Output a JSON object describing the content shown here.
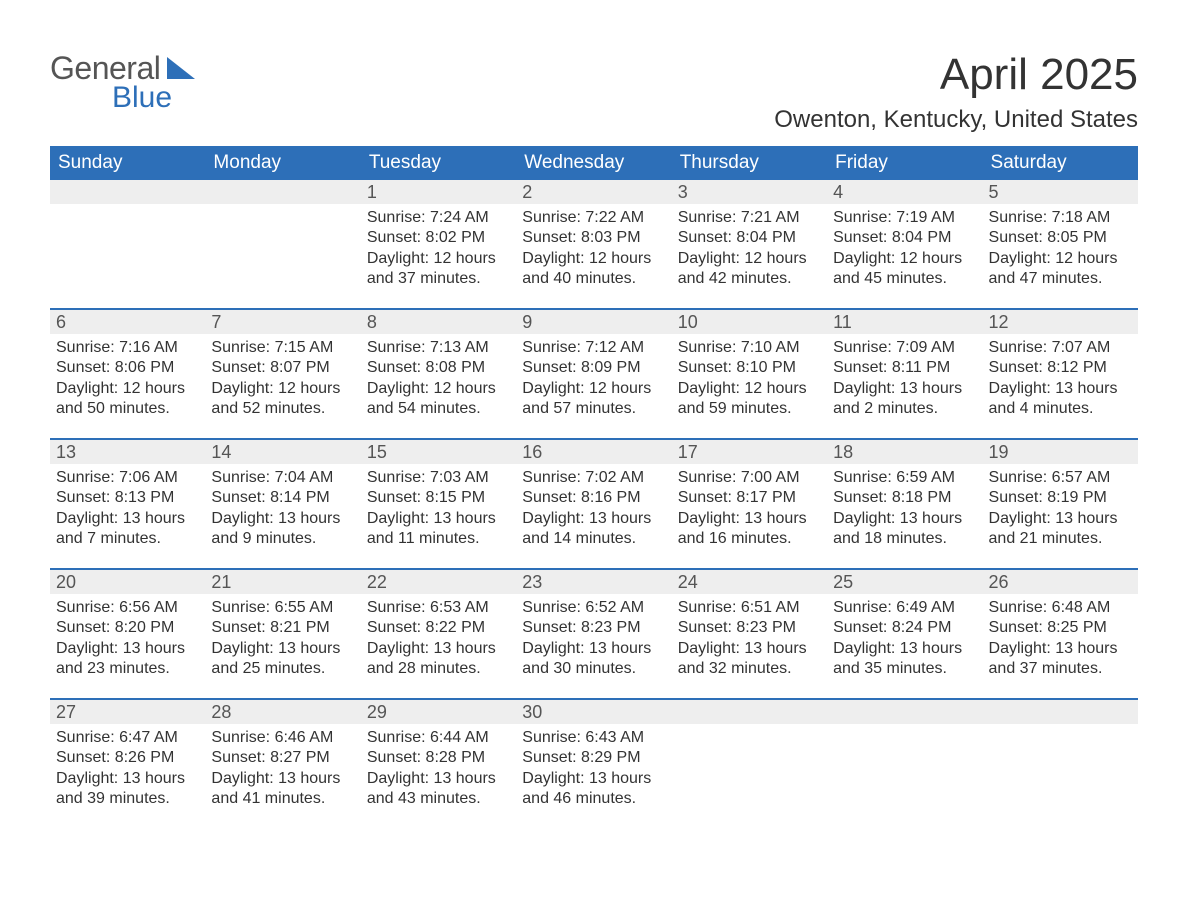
{
  "logo": {
    "textGeneral": "General",
    "textBlue": "Blue",
    "shape_color": "#2d6fb8"
  },
  "title": "April 2025",
  "location": "Owenton, Kentucky, United States",
  "colors": {
    "header_bg": "#2d6fb8",
    "header_text": "#ffffff",
    "daynum_bg": "#eeeeee",
    "daynum_text": "#555555",
    "body_text": "#333333",
    "row_border": "#2d6fb8"
  },
  "weekdays": [
    "Sunday",
    "Monday",
    "Tuesday",
    "Wednesday",
    "Thursday",
    "Friday",
    "Saturday"
  ],
  "weeks": [
    [
      {
        "n": "",
        "sunrise": "",
        "sunset": "",
        "daylight": ""
      },
      {
        "n": "",
        "sunrise": "",
        "sunset": "",
        "daylight": ""
      },
      {
        "n": "1",
        "sunrise": "Sunrise: 7:24 AM",
        "sunset": "Sunset: 8:02 PM",
        "daylight": "Daylight: 12 hours and 37 minutes."
      },
      {
        "n": "2",
        "sunrise": "Sunrise: 7:22 AM",
        "sunset": "Sunset: 8:03 PM",
        "daylight": "Daylight: 12 hours and 40 minutes."
      },
      {
        "n": "3",
        "sunrise": "Sunrise: 7:21 AM",
        "sunset": "Sunset: 8:04 PM",
        "daylight": "Daylight: 12 hours and 42 minutes."
      },
      {
        "n": "4",
        "sunrise": "Sunrise: 7:19 AM",
        "sunset": "Sunset: 8:04 PM",
        "daylight": "Daylight: 12 hours and 45 minutes."
      },
      {
        "n": "5",
        "sunrise": "Sunrise: 7:18 AM",
        "sunset": "Sunset: 8:05 PM",
        "daylight": "Daylight: 12 hours and 47 minutes."
      }
    ],
    [
      {
        "n": "6",
        "sunrise": "Sunrise: 7:16 AM",
        "sunset": "Sunset: 8:06 PM",
        "daylight": "Daylight: 12 hours and 50 minutes."
      },
      {
        "n": "7",
        "sunrise": "Sunrise: 7:15 AM",
        "sunset": "Sunset: 8:07 PM",
        "daylight": "Daylight: 12 hours and 52 minutes."
      },
      {
        "n": "8",
        "sunrise": "Sunrise: 7:13 AM",
        "sunset": "Sunset: 8:08 PM",
        "daylight": "Daylight: 12 hours and 54 minutes."
      },
      {
        "n": "9",
        "sunrise": "Sunrise: 7:12 AM",
        "sunset": "Sunset: 8:09 PM",
        "daylight": "Daylight: 12 hours and 57 minutes."
      },
      {
        "n": "10",
        "sunrise": "Sunrise: 7:10 AM",
        "sunset": "Sunset: 8:10 PM",
        "daylight": "Daylight: 12 hours and 59 minutes."
      },
      {
        "n": "11",
        "sunrise": "Sunrise: 7:09 AM",
        "sunset": "Sunset: 8:11 PM",
        "daylight": "Daylight: 13 hours and 2 minutes."
      },
      {
        "n": "12",
        "sunrise": "Sunrise: 7:07 AM",
        "sunset": "Sunset: 8:12 PM",
        "daylight": "Daylight: 13 hours and 4 minutes."
      }
    ],
    [
      {
        "n": "13",
        "sunrise": "Sunrise: 7:06 AM",
        "sunset": "Sunset: 8:13 PM",
        "daylight": "Daylight: 13 hours and 7 minutes."
      },
      {
        "n": "14",
        "sunrise": "Sunrise: 7:04 AM",
        "sunset": "Sunset: 8:14 PM",
        "daylight": "Daylight: 13 hours and 9 minutes."
      },
      {
        "n": "15",
        "sunrise": "Sunrise: 7:03 AM",
        "sunset": "Sunset: 8:15 PM",
        "daylight": "Daylight: 13 hours and 11 minutes."
      },
      {
        "n": "16",
        "sunrise": "Sunrise: 7:02 AM",
        "sunset": "Sunset: 8:16 PM",
        "daylight": "Daylight: 13 hours and 14 minutes."
      },
      {
        "n": "17",
        "sunrise": "Sunrise: 7:00 AM",
        "sunset": "Sunset: 8:17 PM",
        "daylight": "Daylight: 13 hours and 16 minutes."
      },
      {
        "n": "18",
        "sunrise": "Sunrise: 6:59 AM",
        "sunset": "Sunset: 8:18 PM",
        "daylight": "Daylight: 13 hours and 18 minutes."
      },
      {
        "n": "19",
        "sunrise": "Sunrise: 6:57 AM",
        "sunset": "Sunset: 8:19 PM",
        "daylight": "Daylight: 13 hours and 21 minutes."
      }
    ],
    [
      {
        "n": "20",
        "sunrise": "Sunrise: 6:56 AM",
        "sunset": "Sunset: 8:20 PM",
        "daylight": "Daylight: 13 hours and 23 minutes."
      },
      {
        "n": "21",
        "sunrise": "Sunrise: 6:55 AM",
        "sunset": "Sunset: 8:21 PM",
        "daylight": "Daylight: 13 hours and 25 minutes."
      },
      {
        "n": "22",
        "sunrise": "Sunrise: 6:53 AM",
        "sunset": "Sunset: 8:22 PM",
        "daylight": "Daylight: 13 hours and 28 minutes."
      },
      {
        "n": "23",
        "sunrise": "Sunrise: 6:52 AM",
        "sunset": "Sunset: 8:23 PM",
        "daylight": "Daylight: 13 hours and 30 minutes."
      },
      {
        "n": "24",
        "sunrise": "Sunrise: 6:51 AM",
        "sunset": "Sunset: 8:23 PM",
        "daylight": "Daylight: 13 hours and 32 minutes."
      },
      {
        "n": "25",
        "sunrise": "Sunrise: 6:49 AM",
        "sunset": "Sunset: 8:24 PM",
        "daylight": "Daylight: 13 hours and 35 minutes."
      },
      {
        "n": "26",
        "sunrise": "Sunrise: 6:48 AM",
        "sunset": "Sunset: 8:25 PM",
        "daylight": "Daylight: 13 hours and 37 minutes."
      }
    ],
    [
      {
        "n": "27",
        "sunrise": "Sunrise: 6:47 AM",
        "sunset": "Sunset: 8:26 PM",
        "daylight": "Daylight: 13 hours and 39 minutes."
      },
      {
        "n": "28",
        "sunrise": "Sunrise: 6:46 AM",
        "sunset": "Sunset: 8:27 PM",
        "daylight": "Daylight: 13 hours and 41 minutes."
      },
      {
        "n": "29",
        "sunrise": "Sunrise: 6:44 AM",
        "sunset": "Sunset: 8:28 PM",
        "daylight": "Daylight: 13 hours and 43 minutes."
      },
      {
        "n": "30",
        "sunrise": "Sunrise: 6:43 AM",
        "sunset": "Sunset: 8:29 PM",
        "daylight": "Daylight: 13 hours and 46 minutes."
      },
      {
        "n": "",
        "sunrise": "",
        "sunset": "",
        "daylight": ""
      },
      {
        "n": "",
        "sunrise": "",
        "sunset": "",
        "daylight": ""
      },
      {
        "n": "",
        "sunrise": "",
        "sunset": "",
        "daylight": ""
      }
    ]
  ]
}
